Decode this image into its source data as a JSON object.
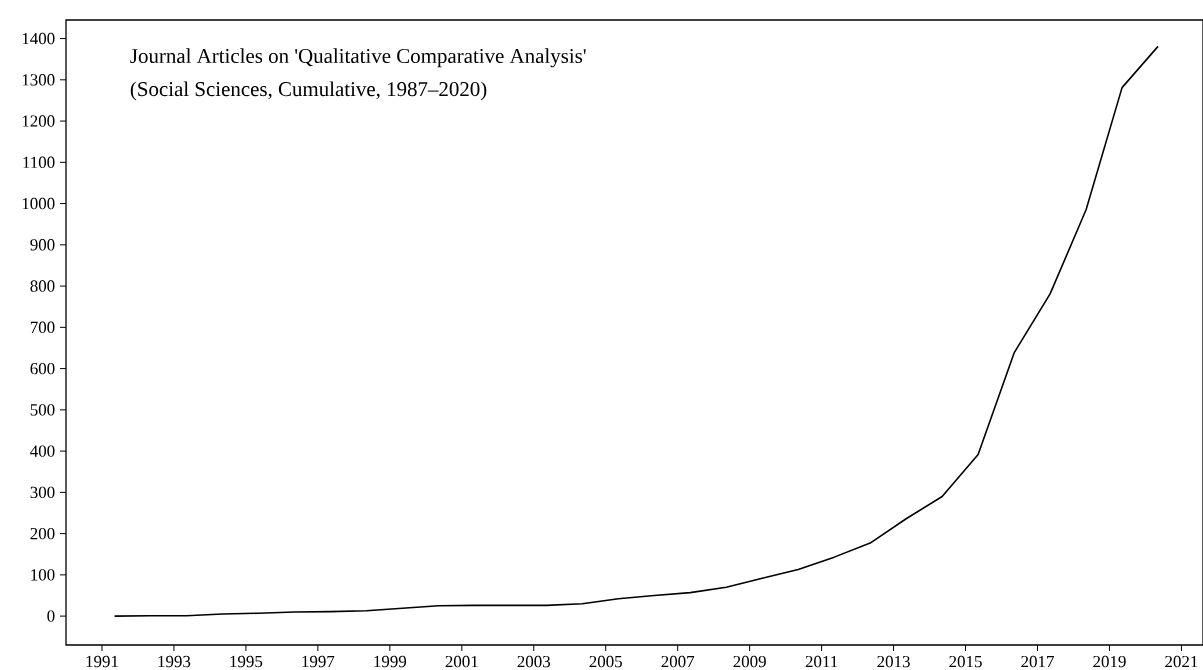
{
  "chart_data": {
    "type": "line",
    "title": "Journal Articles on 'Qualitative Comparative Analysis'",
    "subtitle": "(Social Sciences, Cumulative, 1987–2020)",
    "x": [
      1991.35,
      1992.35,
      1993.35,
      1994.35,
      1995.35,
      1996.35,
      1997.35,
      1998.35,
      1999.35,
      2000.35,
      2001.35,
      2002.35,
      2003.35,
      2004.35,
      2005.35,
      2006.35,
      2007.35,
      2008.35,
      2009.35,
      2010.35,
      2011.35,
      2012.35,
      2013.35,
      2014.35,
      2015.35,
      2016.35,
      2017.35,
      2018.35,
      2019.35,
      2020.35
    ],
    "series": [
      {
        "color": "#000000",
        "values": [
          0,
          1,
          1,
          5,
          7,
          10,
          11,
          13,
          19,
          25,
          26,
          26,
          26,
          30,
          42,
          50,
          57,
          70,
          92,
          113,
          143,
          177,
          236,
          290,
          392,
          638,
          781,
          985,
          1281,
          1381
        ]
      }
    ],
    "xlim": [
      1990,
      2021.6
    ],
    "ylim": [
      -70,
      1445
    ],
    "xticks": [
      1991,
      1993,
      1995,
      1997,
      1999,
      2001,
      2003,
      2005,
      2007,
      2009,
      2011,
      2013,
      2015,
      2017,
      2019,
      2021
    ],
    "yticks": [
      0,
      100,
      200,
      300,
      400,
      500,
      600,
      700,
      800,
      900,
      1000,
      1100,
      1200,
      1300,
      1400
    ],
    "grid": false,
    "marker": "none",
    "line_style": "solid"
  }
}
